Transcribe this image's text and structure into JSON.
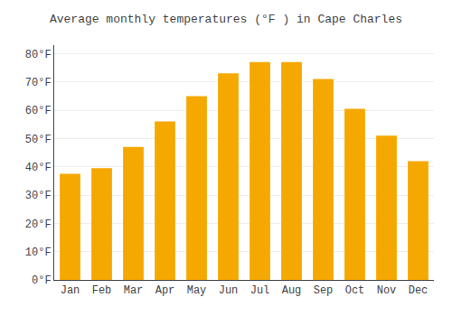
{
  "chart_data": {
    "type": "bar",
    "title": "Average monthly temperatures (°F ) in Cape Charles",
    "categories": [
      "Jan",
      "Feb",
      "Mar",
      "Apr",
      "May",
      "Jun",
      "Jul",
      "Aug",
      "Sep",
      "Oct",
      "Nov",
      "Dec"
    ],
    "values": [
      37.5,
      39.5,
      47,
      56,
      65,
      73,
      77,
      77,
      71,
      60.5,
      51,
      42
    ],
    "color": "#F5A800",
    "ylim": [
      0,
      83
    ],
    "yticks": [
      {
        "value": 0,
        "label": "0°F"
      },
      {
        "value": 10,
        "label": "10°F"
      },
      {
        "value": 20,
        "label": "20°F"
      },
      {
        "value": 30,
        "label": "30°F"
      },
      {
        "value": 40,
        "label": "40°F"
      },
      {
        "value": 50,
        "label": "50°F"
      },
      {
        "value": 60,
        "label": "60°F"
      },
      {
        "value": 70,
        "label": "70°F"
      },
      {
        "value": 80,
        "label": "80°F"
      }
    ],
    "grid": true
  }
}
